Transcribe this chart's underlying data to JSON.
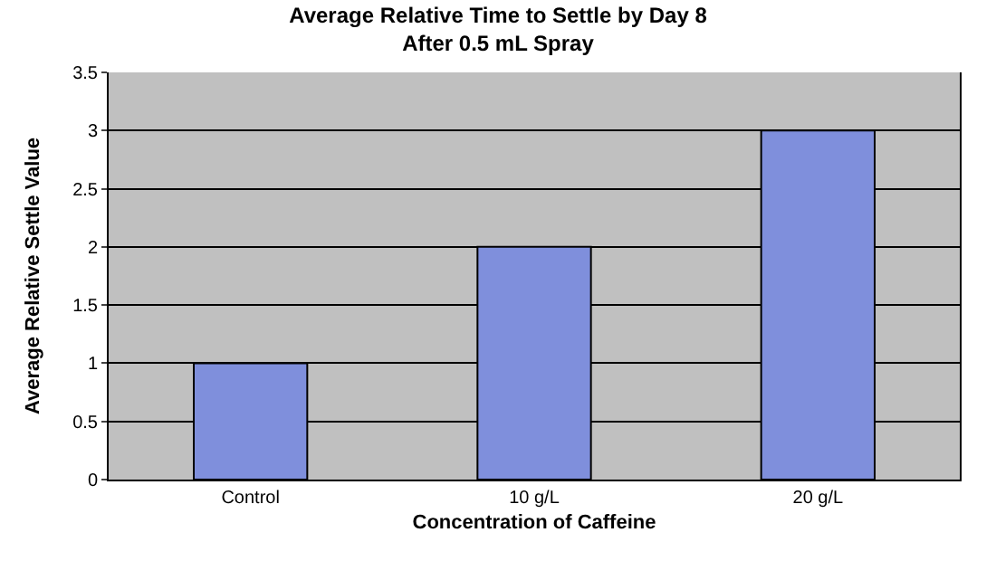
{
  "chart_data": {
    "type": "bar",
    "title": "Average Relative Time to Settle by Day 8\nAfter 0.5 mL Spray",
    "xlabel": "Concentration of Caffeine",
    "ylabel": "Average Relative Settle Value",
    "categories": [
      "Control",
      "10 g/L",
      "20 g/L"
    ],
    "values": [
      1,
      2,
      3
    ],
    "color": "#7f8fdc",
    "ylim": [
      0,
      3.5
    ],
    "yticks": [
      0,
      0.5,
      1,
      1.5,
      2,
      2.5,
      3,
      3.5
    ],
    "grid": "y"
  }
}
